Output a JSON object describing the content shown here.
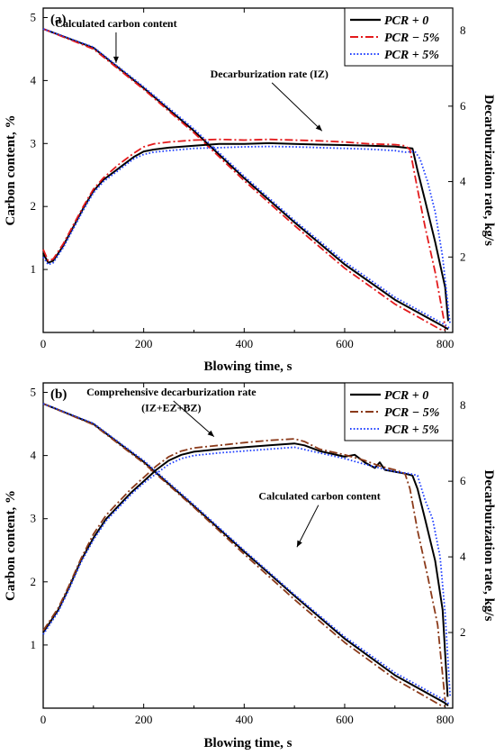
{
  "chart_data": [
    {
      "type": "line",
      "panel_label": "(a)",
      "xlabel": "Blowing time, s",
      "ylabel": "Carbon content, %",
      "y2label": "Decarburization rate, kg/s",
      "xlim": [
        0,
        815
      ],
      "ylim": [
        0,
        5.15
      ],
      "y2lim": [
        0,
        8.6
      ],
      "x_ticks": [
        0,
        200,
        400,
        600,
        800
      ],
      "y_ticks": [
        1,
        2,
        3,
        4,
        5
      ],
      "y2_ticks": [
        2,
        4,
        6,
        8
      ],
      "legend": {
        "placement": "top-right",
        "entries": [
          "PCR + 0",
          "PCR − 5%",
          "PCR + 5%"
        ]
      },
      "annotations": [
        {
          "text": "Calculated carbon content",
          "x": 145,
          "y": 4.85,
          "arrow_to": [
            145,
            4.28
          ]
        },
        {
          "text": "Decarburization rate (IZ)",
          "x": 450,
          "y": 4.05,
          "arrow_to": [
            555,
            3.2
          ]
        }
      ],
      "series": [
        {
          "name": "PCR + 0",
          "axis": "left",
          "color": "#000000",
          "dash": "solid",
          "x": [
            0,
            100,
            200,
            300,
            400,
            500,
            600,
            700,
            800,
            806
          ],
          "y": [
            4.82,
            4.52,
            3.88,
            3.2,
            2.45,
            1.75,
            1.08,
            0.52,
            0.08,
            0.05
          ]
        },
        {
          "name": "PCR − 5%",
          "axis": "left",
          "color": "#e31a1c",
          "dash": "dashdot",
          "x": [
            0,
            100,
            200,
            300,
            400,
            500,
            600,
            700,
            790,
            800
          ],
          "y": [
            4.82,
            4.5,
            3.86,
            3.17,
            2.41,
            1.7,
            1.02,
            0.45,
            0.05,
            0.04
          ]
        },
        {
          "name": "PCR + 5%",
          "axis": "left",
          "color": "#1f3fff",
          "dash": "dotted",
          "x": [
            0,
            100,
            200,
            300,
            400,
            500,
            600,
            700,
            800,
            810
          ],
          "y": [
            4.82,
            4.53,
            3.9,
            3.23,
            2.48,
            1.78,
            1.12,
            0.56,
            0.12,
            0.06
          ]
        },
        {
          "name": "PCR + 0",
          "axis": "right",
          "color": "#000000",
          "dash": "solid",
          "x": [
            0,
            10,
            20,
            40,
            60,
            80,
            100,
            120,
            150,
            180,
            200,
            220,
            250,
            300,
            350,
            400,
            450,
            500,
            550,
            600,
            650,
            700,
            720,
            735,
            745,
            760,
            780,
            800,
            806
          ],
          "y": [
            2.1,
            1.85,
            1.9,
            2.3,
            2.8,
            3.3,
            3.75,
            4.05,
            4.35,
            4.65,
            4.8,
            4.85,
            4.9,
            4.95,
            5.0,
            5.0,
            5.02,
            5.0,
            4.98,
            4.97,
            4.95,
            4.93,
            4.9,
            4.88,
            4.3,
            3.5,
            2.4,
            1.2,
            0.3
          ]
        },
        {
          "name": "PCR − 5%",
          "axis": "right",
          "color": "#e31a1c",
          "dash": "dashdot",
          "x": [
            0,
            10,
            20,
            40,
            60,
            80,
            100,
            120,
            150,
            180,
            200,
            220,
            250,
            300,
            350,
            400,
            450,
            500,
            550,
            600,
            650,
            700,
            720,
            730,
            745,
            760,
            780,
            800
          ],
          "y": [
            2.2,
            1.9,
            1.95,
            2.35,
            2.85,
            3.35,
            3.8,
            4.1,
            4.45,
            4.75,
            4.92,
            5.0,
            5.05,
            5.1,
            5.12,
            5.1,
            5.12,
            5.1,
            5.08,
            5.05,
            5.0,
            4.98,
            4.95,
            4.85,
            3.8,
            2.8,
            1.6,
            0.15
          ]
        },
        {
          "name": "PCR + 5%",
          "axis": "right",
          "color": "#1f3fff",
          "dash": "dotted",
          "x": [
            0,
            10,
            20,
            40,
            60,
            80,
            100,
            120,
            150,
            180,
            200,
            220,
            250,
            300,
            350,
            400,
            450,
            500,
            550,
            600,
            650,
            700,
            720,
            740,
            750,
            765,
            780,
            795,
            810
          ],
          "y": [
            2.0,
            1.8,
            1.85,
            2.25,
            2.75,
            3.25,
            3.7,
            4.0,
            4.3,
            4.6,
            4.72,
            4.78,
            4.82,
            4.88,
            4.9,
            4.92,
            4.93,
            4.92,
            4.9,
            4.88,
            4.86,
            4.82,
            4.78,
            4.8,
            4.6,
            4.0,
            3.2,
            2.0,
            0.2
          ]
        }
      ]
    },
    {
      "type": "line",
      "panel_label": "(b)",
      "xlabel": "Blowing time, s",
      "ylabel": "Carbon content, %",
      "y2label": "Decarburization rate, kg/s",
      "xlim": [
        0,
        815
      ],
      "ylim": [
        0,
        5.15
      ],
      "y2lim": [
        0,
        8.6
      ],
      "x_ticks": [
        0,
        200,
        400,
        600,
        800
      ],
      "y_ticks": [
        1,
        2,
        3,
        4,
        5
      ],
      "y2_ticks": [
        2,
        4,
        6,
        8
      ],
      "legend": {
        "placement": "top-right",
        "entries": [
          "PCR + 0",
          "PCR − 5%",
          "PCR + 5%"
        ]
      },
      "annotations": [
        {
          "text": "Comprehensive decarburization rate",
          "x": 255,
          "y": 4.95,
          "arrow_to": [
            340,
            4.3
          ]
        },
        {
          "text": "(IZ+EZ+BZ)",
          "x": 255,
          "y": 4.7
        },
        {
          "text": "Calculated carbon content",
          "x": 550,
          "y": 3.3,
          "arrow_to": [
            505,
            2.55
          ]
        }
      ],
      "series": [
        {
          "name": "PCR + 0",
          "axis": "left",
          "color": "#000000",
          "dash": "solid",
          "x": [
            0,
            100,
            200,
            300,
            400,
            500,
            600,
            700,
            800,
            806
          ],
          "y": [
            4.82,
            4.5,
            3.9,
            3.2,
            2.48,
            1.78,
            1.1,
            0.52,
            0.08,
            0.04
          ]
        },
        {
          "name": "PCR − 5%",
          "axis": "left",
          "color": "#8b3a1a",
          "dash": "dashdot",
          "x": [
            0,
            100,
            200,
            300,
            400,
            500,
            600,
            700,
            790,
            800
          ],
          "y": [
            4.82,
            4.49,
            3.88,
            3.18,
            2.44,
            1.72,
            1.04,
            0.46,
            0.05,
            0.03
          ]
        },
        {
          "name": "PCR + 5%",
          "axis": "left",
          "color": "#1f3fff",
          "dash": "dotted",
          "x": [
            0,
            100,
            200,
            300,
            400,
            500,
            600,
            700,
            800,
            810
          ],
          "y": [
            4.82,
            4.51,
            3.92,
            3.22,
            2.5,
            1.8,
            1.13,
            0.56,
            0.12,
            0.05
          ]
        },
        {
          "name": "PCR + 0",
          "axis": "right",
          "color": "#000000",
          "dash": "solid",
          "x": [
            0,
            10,
            30,
            50,
            75,
            100,
            125,
            150,
            175,
            200,
            225,
            250,
            275,
            300,
            350,
            400,
            450,
            500,
            520,
            550,
            600,
            620,
            640,
            660,
            670,
            680,
            700,
            720,
            735,
            745,
            760,
            780,
            795,
            805
          ],
          "y": [
            2.0,
            2.2,
            2.6,
            3.15,
            3.9,
            4.5,
            5.0,
            5.35,
            5.7,
            6.0,
            6.3,
            6.55,
            6.7,
            6.78,
            6.85,
            6.9,
            6.95,
            7.0,
            6.95,
            6.8,
            6.65,
            6.7,
            6.5,
            6.35,
            6.5,
            6.3,
            6.25,
            6.2,
            6.15,
            5.8,
            5.0,
            3.9,
            2.6,
            0.3
          ]
        },
        {
          "name": "PCR − 5%",
          "axis": "right",
          "color": "#8b3a1a",
          "dash": "dashdot",
          "x": [
            0,
            10,
            30,
            50,
            75,
            100,
            125,
            150,
            175,
            200,
            225,
            250,
            275,
            300,
            350,
            400,
            450,
            500,
            520,
            550,
            600,
            640,
            670,
            700,
            720,
            730,
            745,
            765,
            785,
            800
          ],
          "y": [
            2.05,
            2.25,
            2.65,
            3.2,
            3.95,
            4.6,
            5.1,
            5.45,
            5.8,
            6.1,
            6.4,
            6.65,
            6.8,
            6.88,
            6.95,
            7.02,
            7.08,
            7.12,
            7.05,
            6.85,
            6.7,
            6.55,
            6.4,
            6.3,
            6.2,
            5.8,
            4.7,
            3.5,
            2.2,
            0.2
          ]
        },
        {
          "name": "PCR + 5%",
          "axis": "right",
          "color": "#1f3fff",
          "dash": "dotted",
          "x": [
            0,
            10,
            30,
            50,
            75,
            100,
            125,
            150,
            175,
            200,
            225,
            250,
            275,
            300,
            350,
            400,
            450,
            500,
            550,
            600,
            640,
            670,
            700,
            730,
            745,
            760,
            775,
            790,
            800,
            810
          ],
          "y": [
            1.95,
            2.15,
            2.55,
            3.1,
            3.85,
            4.45,
            4.95,
            5.3,
            5.65,
            5.95,
            6.2,
            6.45,
            6.6,
            6.68,
            6.75,
            6.8,
            6.85,
            6.9,
            6.75,
            6.6,
            6.45,
            6.35,
            6.25,
            6.2,
            6.15,
            5.5,
            5.0,
            4.0,
            2.5,
            0.3
          ]
        }
      ]
    }
  ]
}
